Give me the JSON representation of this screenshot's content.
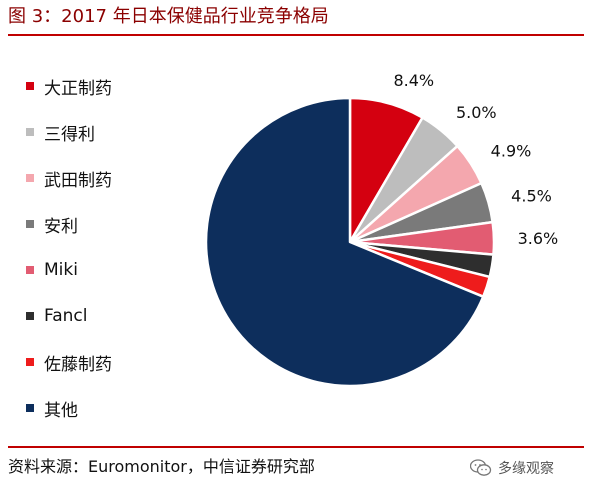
{
  "title": "图 3：2017 年日本保健品行业竞争格局",
  "source": "资料来源：Euromonitor，中信证券研究部",
  "watermark": {
    "text": "多缘观察",
    "icon": "wechat-icon"
  },
  "colors": {
    "title": "#8b0000",
    "rule": "#c00000"
  },
  "chart_data": {
    "type": "pie",
    "title": "",
    "start_angle_deg": 0,
    "direction": "clockwise",
    "legend_position": "left",
    "series": [
      {
        "name": "大正制药",
        "value": 8.4,
        "label": "8.4%",
        "color": "#d40010"
      },
      {
        "name": "三得利",
        "value": 5.0,
        "label": "5.0%",
        "color": "#bdbdbd"
      },
      {
        "name": "武田制药",
        "value": 4.9,
        "label": "4.9%",
        "color": "#f4a7ae"
      },
      {
        "name": "安利",
        "value": 4.5,
        "label": "4.5%",
        "color": "#7a7a7a"
      },
      {
        "name": "Miki",
        "value": 3.6,
        "label": "3.6%",
        "color": "#e25c72"
      },
      {
        "name": "Fancl",
        "value": 2.5,
        "label": "",
        "color": "#2e2e2e"
      },
      {
        "name": "佐藤制药",
        "value": 2.3,
        "label": "",
        "color": "#ee1c1c"
      },
      {
        "name": "其他",
        "value": 68.8,
        "label": "",
        "color": "#0d2e5c"
      }
    ]
  }
}
